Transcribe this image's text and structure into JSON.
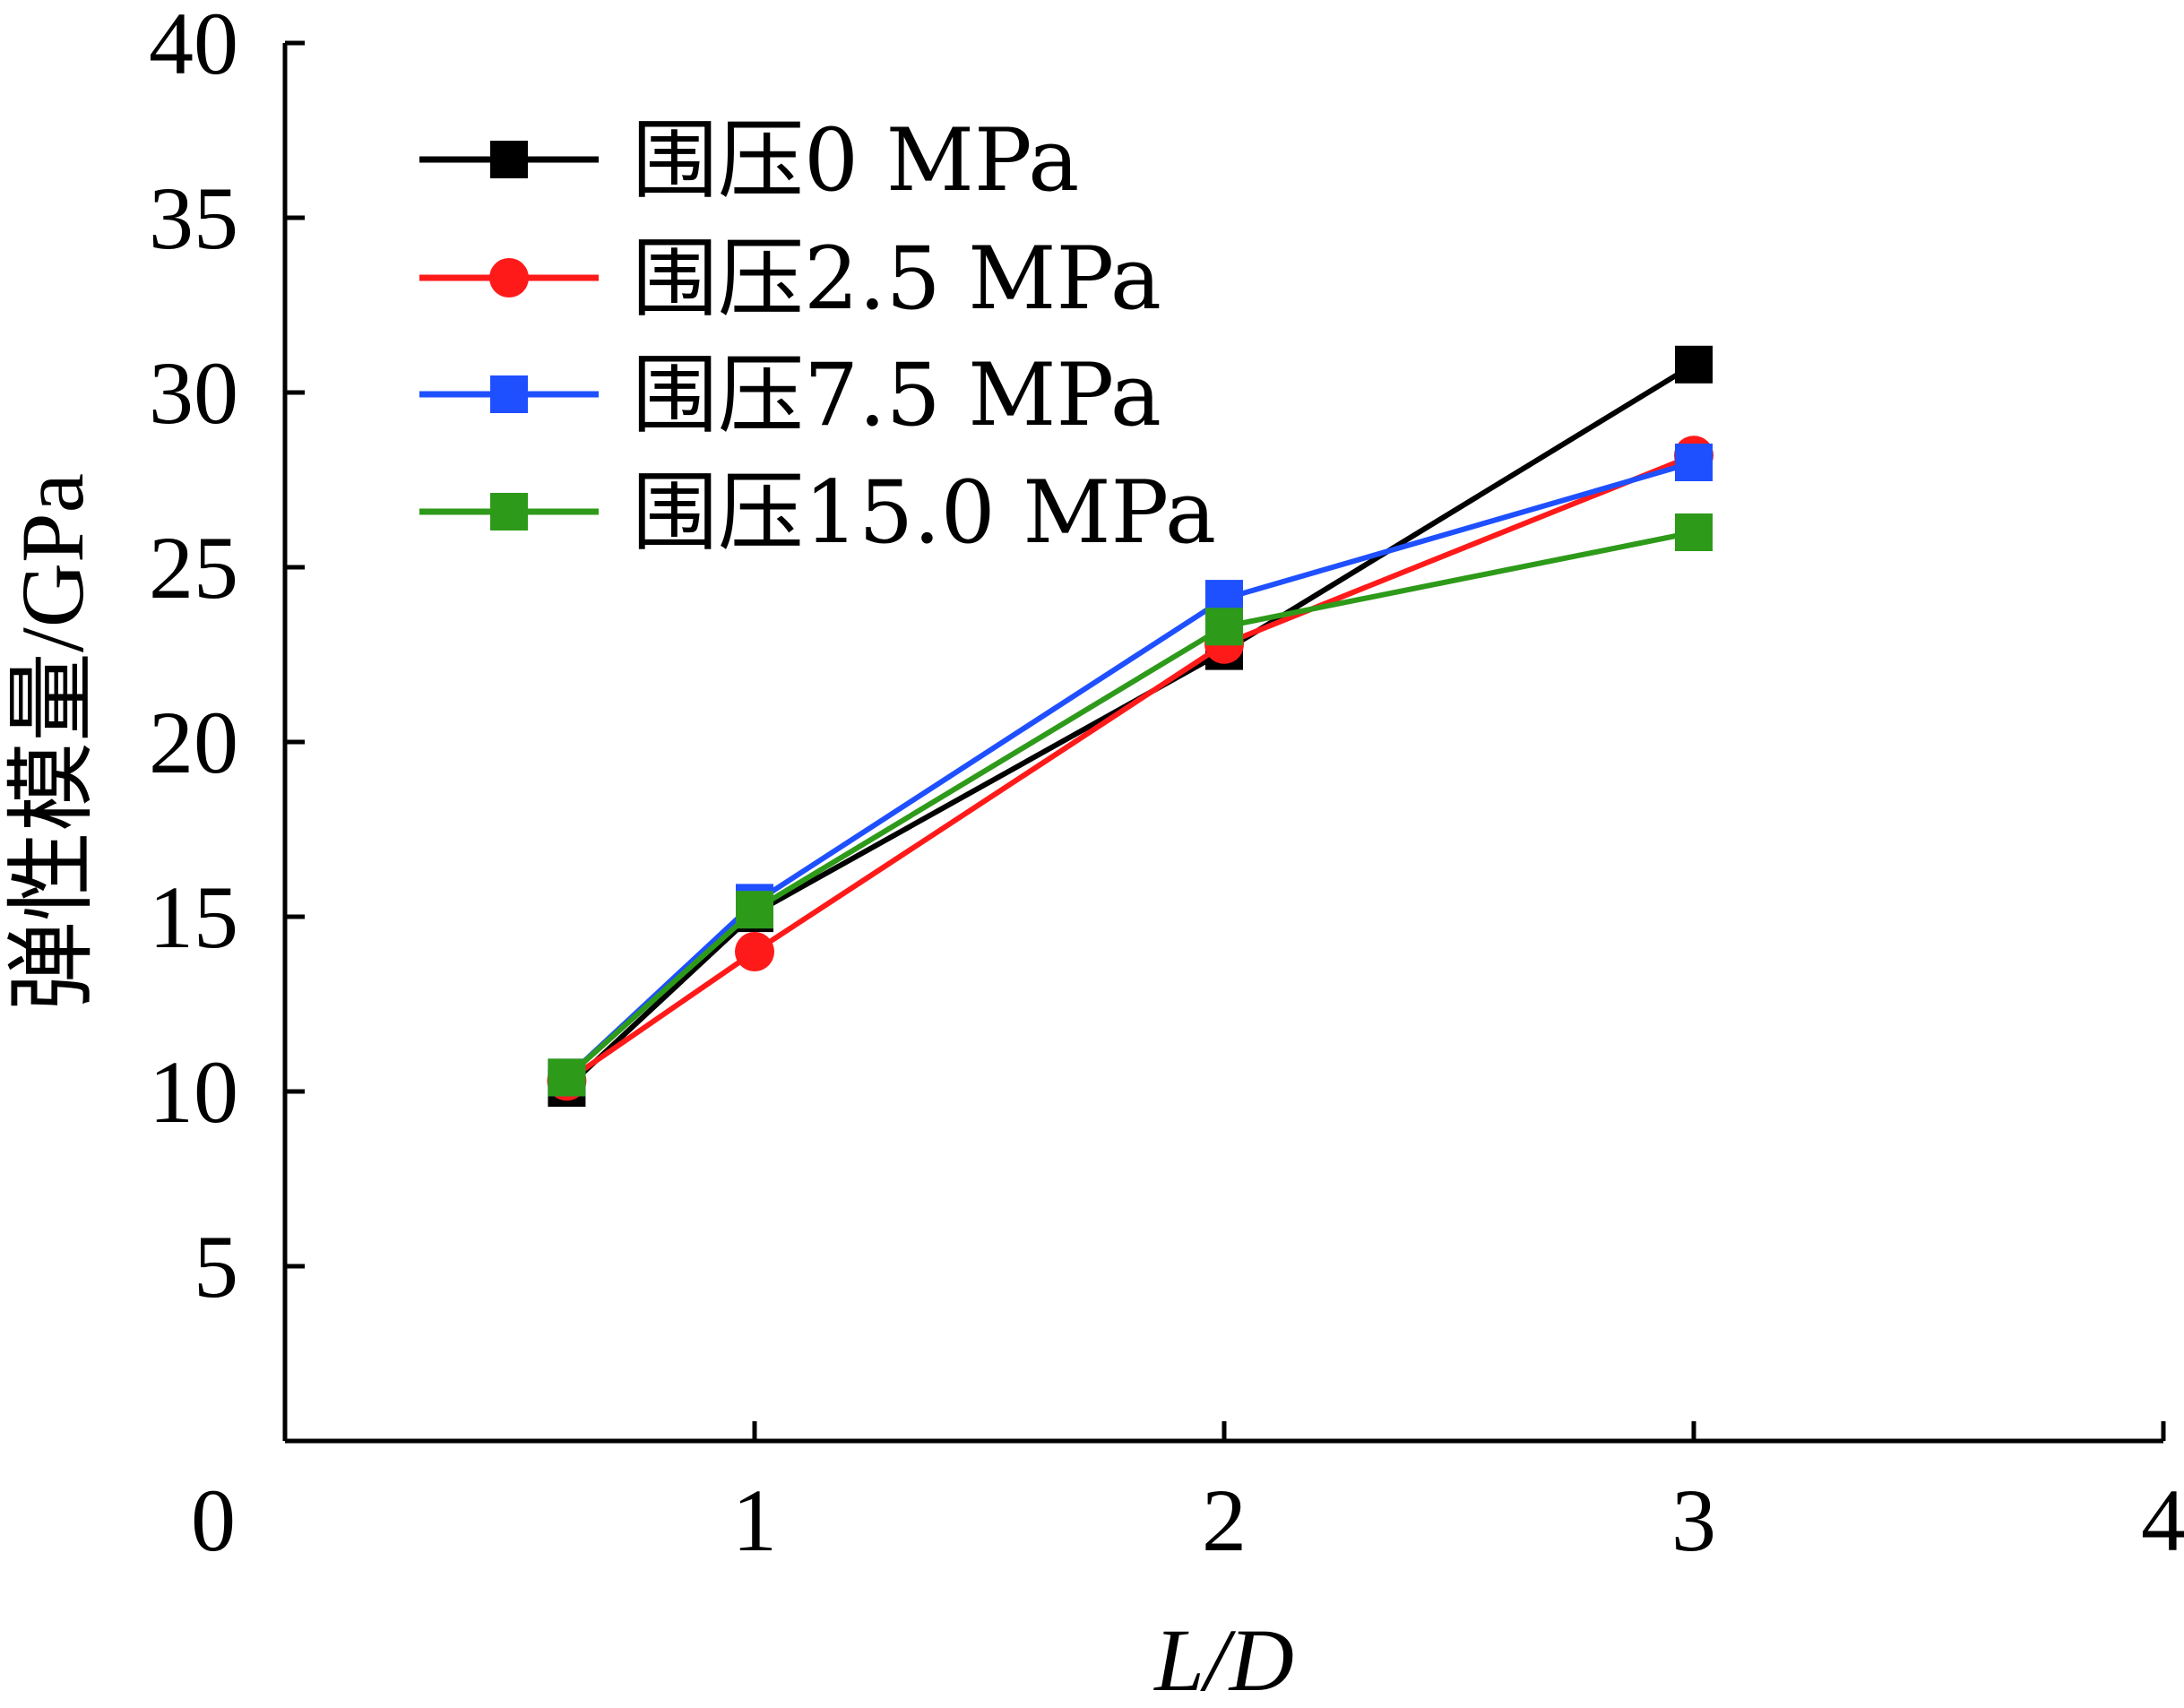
{
  "chart_data": {
    "type": "line",
    "xlabel": "L/D",
    "ylabel": "弹性模量/GPa",
    "xlim": [
      0,
      4
    ],
    "ylim": [
      0,
      40
    ],
    "x_ticks": [
      "0",
      "1",
      "2",
      "3",
      "4"
    ],
    "y_ticks": [
      "5",
      "10",
      "15",
      "20",
      "25",
      "30",
      "35",
      "40"
    ],
    "grid": false,
    "legend_position": "top-left",
    "series": [
      {
        "name": "围压0 MPa",
        "color": "#000000",
        "marker": "square",
        "x": [
          0.6,
          1,
          2,
          3
        ],
        "y": [
          10.1,
          15.1,
          22.6,
          30.8
        ]
      },
      {
        "name": "围压2.5 MPa",
        "color": "#ff1a1a",
        "marker": "circle",
        "x": [
          0.6,
          1,
          2,
          3
        ],
        "y": [
          10.3,
          14.0,
          22.8,
          28.2
        ]
      },
      {
        "name": "围压7.5 MPa",
        "color": "#1f50ff",
        "marker": "square",
        "x": [
          0.6,
          1,
          2,
          3
        ],
        "y": [
          10.4,
          15.4,
          24.1,
          28.0
        ]
      },
      {
        "name": "围压15.0 MPa",
        "color": "#2e9a1a",
        "marker": "square",
        "x": [
          0.6,
          1,
          2,
          3
        ],
        "y": [
          10.4,
          15.2,
          23.3,
          26.0
        ]
      }
    ]
  }
}
